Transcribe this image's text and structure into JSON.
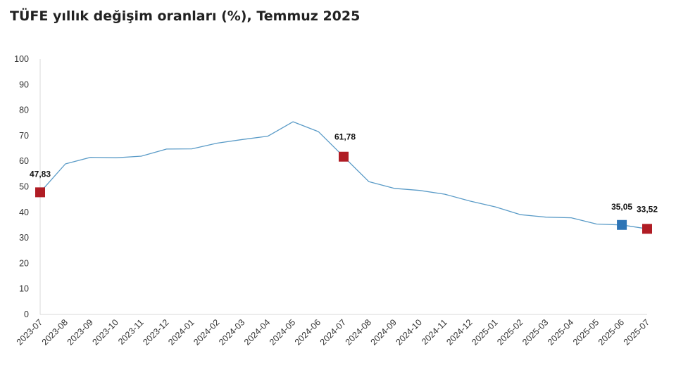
{
  "title": "TÜFE yıllık değişim oranları (%), Temmuz 2025",
  "chart_data": {
    "type": "line",
    "title": "TÜFE yıllık değişim oranları (%), Temmuz 2025",
    "xlabel": "",
    "ylabel": "",
    "ylim": [
      0,
      100
    ],
    "yticks": [
      0,
      10,
      20,
      30,
      40,
      50,
      60,
      70,
      80,
      90,
      100
    ],
    "grid": false,
    "categories": [
      "2023-07",
      "2023-08",
      "2023-09",
      "2023-10",
      "2023-11",
      "2023-12",
      "2024-01",
      "2024-02",
      "2024-03",
      "2024-04",
      "2024-05",
      "2024-06",
      "2024-07",
      "2024-08",
      "2024-09",
      "2024-10",
      "2024-11",
      "2024-12",
      "2025-01",
      "2025-02",
      "2025-03",
      "2025-04",
      "2025-05",
      "2025-06",
      "2025-07"
    ],
    "series": [
      {
        "color": "#5a9bc7",
        "values": [
          47.83,
          58.94,
          61.53,
          61.36,
          61.98,
          64.77,
          64.86,
          67.07,
          68.5,
          69.8,
          75.45,
          71.6,
          61.78,
          51.97,
          49.38,
          48.58,
          47.09,
          44.38,
          42.12,
          39.05,
          38.1,
          37.86,
          35.41,
          35.05,
          33.52
        ]
      }
    ],
    "highlighted_points": [
      {
        "index": 0,
        "label": "47,83",
        "color": "#b01c24"
      },
      {
        "index": 12,
        "label": "61,78",
        "color": "#b01c24"
      },
      {
        "index": 23,
        "label": "35,05",
        "color": "#2e75b6"
      },
      {
        "index": 24,
        "label": "33,52",
        "color": "#b01c24"
      }
    ]
  }
}
